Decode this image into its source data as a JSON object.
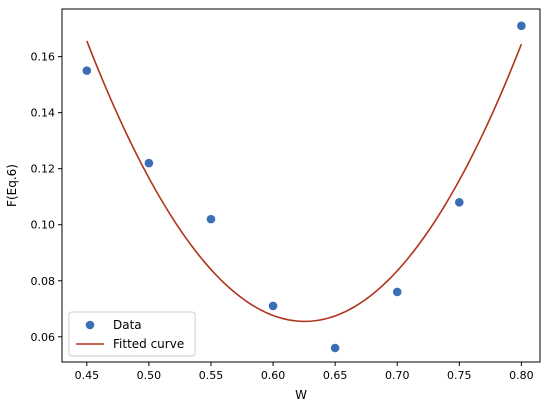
{
  "chart_data": {
    "type": "scatter",
    "xlabel": "W",
    "ylabel": "F(Eq.6)",
    "xlim": [
      0.43,
      0.815
    ],
    "ylim": [
      0.051,
      0.177
    ],
    "x_ticks": [
      "0.45",
      "0.50",
      "0.55",
      "0.60",
      "0.65",
      "0.70",
      "0.75",
      "0.80"
    ],
    "y_ticks": [
      "0.06",
      "0.08",
      "0.10",
      "0.12",
      "0.14",
      "0.16"
    ],
    "grid": false,
    "legend_position": "bottom-left",
    "series": [
      {
        "name": "Data",
        "kind": "scatter",
        "color": "#3a6eb5",
        "x": [
          0.45,
          0.5,
          0.55,
          0.6,
          0.65,
          0.7,
          0.75,
          0.8
        ],
        "y": [
          0.155,
          0.122,
          0.102,
          0.071,
          0.056,
          0.076,
          0.108,
          0.171
        ]
      },
      {
        "name": "Fitted curve",
        "kind": "line",
        "color": "#b0331a",
        "x_range": [
          0.45,
          0.8
        ],
        "quadratic": {
          "vertex_x": 0.6255,
          "vertex_y": 0.0655,
          "a": 3.25
        }
      }
    ]
  }
}
